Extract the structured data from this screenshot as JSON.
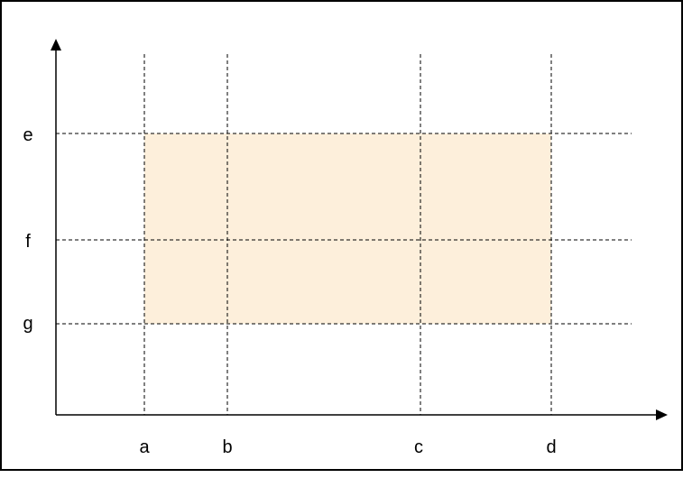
{
  "colors": {
    "border": "#000000",
    "axis": "#000000",
    "guide_line": "#000000",
    "region_fill": "#FDEFDB"
  },
  "diagram": {
    "x_labels": [
      "a",
      "b",
      "c",
      "d"
    ],
    "y_labels": [
      "e",
      "f",
      "g"
    ],
    "shaded_region": {
      "x_from": "a",
      "x_to": "d",
      "y_from": "e",
      "y_to": "g"
    },
    "guide_line_style": "dashed",
    "arrows": [
      "x-axis-right",
      "y-axis-up"
    ]
  }
}
